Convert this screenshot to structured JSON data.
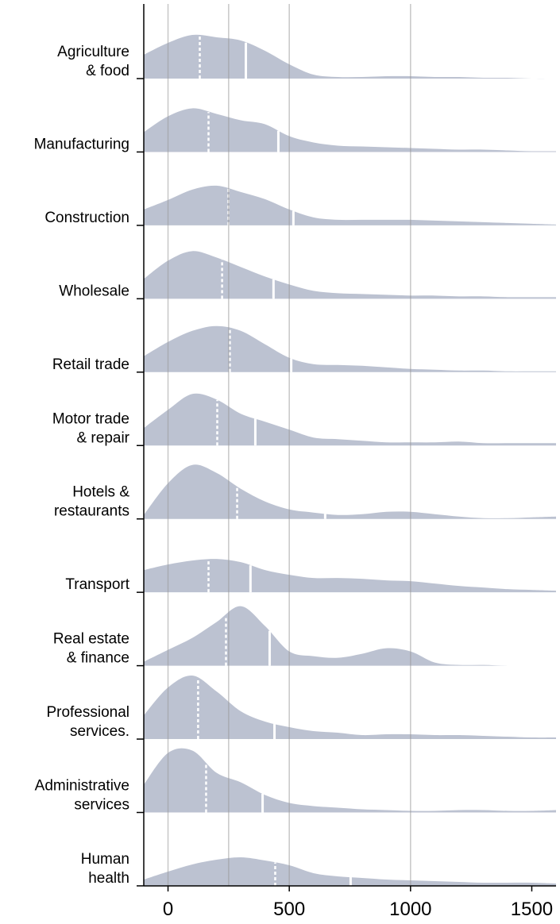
{
  "chart_data": {
    "type": "ridgeline",
    "x": [
      -100,
      0,
      100,
      200,
      300,
      400,
      500,
      600,
      700,
      800,
      900,
      1000,
      1100,
      1200,
      1300,
      1400,
      1500,
      1600
    ],
    "xlim": [
      -100,
      1600
    ],
    "xticks": [
      0,
      500,
      1000,
      1500
    ],
    "xgrid": [
      0,
      250,
      500,
      1000
    ],
    "color": "#bcc2d1",
    "series": [
      {
        "name": [
          "Agriculture",
          "& food"
        ],
        "median": 131,
        "mean": 321,
        "values": [
          30,
          45,
          55,
          52,
          48,
          35,
          18,
          5,
          2,
          2,
          3,
          3,
          2,
          2,
          1,
          1,
          0,
          0
        ]
      },
      {
        "name": [
          "Manufacturing"
        ],
        "median": 167,
        "mean": 455,
        "values": [
          25,
          45,
          55,
          48,
          40,
          35,
          20,
          12,
          8,
          7,
          6,
          5,
          4,
          3,
          3,
          2,
          1,
          1
        ]
      },
      {
        "name": [
          "Construction"
        ],
        "median": 249,
        "mean": 517,
        "values": [
          20,
          32,
          45,
          50,
          42,
          33,
          20,
          10,
          7,
          7,
          7,
          7,
          6,
          5,
          4,
          3,
          2,
          1
        ]
      },
      {
        "name": [
          "Wholesale"
        ],
        "median": 223,
        "mean": 435,
        "values": [
          25,
          48,
          60,
          52,
          40,
          28,
          18,
          10,
          7,
          6,
          5,
          4,
          4,
          3,
          3,
          2,
          2,
          2
        ]
      },
      {
        "name": [
          "Retail trade"
        ],
        "median": 255,
        "mean": 508,
        "values": [
          20,
          38,
          52,
          58,
          52,
          35,
          18,
          10,
          9,
          8,
          6,
          4,
          3,
          2,
          2,
          1,
          1,
          1
        ]
      },
      {
        "name": [
          "Motor trade",
          "& repair"
        ],
        "median": 203,
        "mean": 360,
        "values": [
          22,
          45,
          65,
          58,
          40,
          30,
          20,
          10,
          8,
          6,
          4,
          4,
          4,
          5,
          3,
          3,
          3,
          3
        ]
      },
      {
        "name": [
          "Hotels &",
          "restaurants"
        ],
        "median": 285,
        "mean": 648,
        "values": [
          5,
          45,
          68,
          58,
          38,
          22,
          12,
          8,
          5,
          6,
          9,
          9,
          6,
          3,
          1,
          1,
          2,
          3
        ]
      },
      {
        "name": [
          "Transport"
        ],
        "median": 167,
        "mean": 340,
        "values": [
          28,
          35,
          40,
          42,
          38,
          28,
          22,
          18,
          18,
          17,
          15,
          14,
          11,
          8,
          6,
          4,
          3,
          2
        ]
      },
      {
        "name": [
          "Real estate",
          "& finance"
        ],
        "median": 239,
        "mean": 419,
        "values": [
          5,
          20,
          35,
          55,
          75,
          50,
          18,
          12,
          10,
          15,
          22,
          18,
          4,
          1,
          1,
          0,
          0,
          0
        ]
      },
      {
        "name": [
          "Professional",
          "services."
        ],
        "median": 124,
        "mean": 439,
        "values": [
          30,
          65,
          80,
          60,
          35,
          22,
          15,
          10,
          8,
          5,
          6,
          6,
          5,
          5,
          4,
          3,
          2,
          2
        ]
      },
      {
        "name": [
          "Administrative",
          "services"
        ],
        "median": 157,
        "mean": 390,
        "values": [
          35,
          75,
          78,
          50,
          38,
          22,
          12,
          8,
          6,
          4,
          3,
          2,
          2,
          3,
          3,
          2,
          2,
          3
        ]
      },
      {
        "name": [
          "Human",
          "health"
        ],
        "median": 442,
        "mean": 753,
        "values": [
          8,
          18,
          27,
          33,
          36,
          32,
          26,
          16,
          12,
          10,
          8,
          7,
          6,
          5,
          4,
          4,
          4,
          3
        ]
      }
    ]
  }
}
